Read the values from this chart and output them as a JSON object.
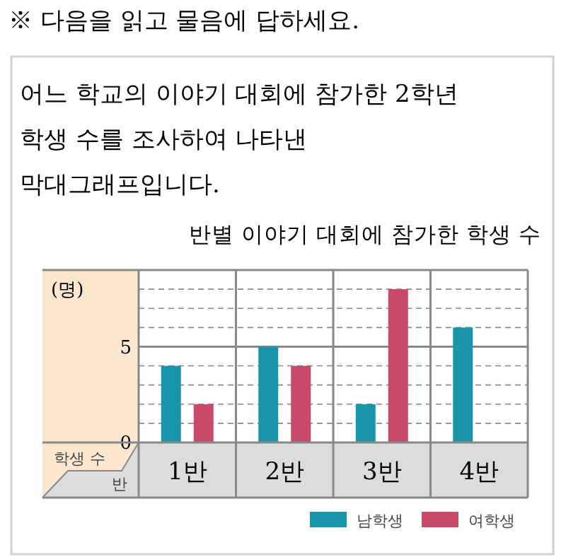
{
  "chart_data": {
    "type": "bar",
    "title": "반별 이야기 대회에 참가한 학생 수",
    "annotations": [
      "※ 다음을 읽고 물음에 답하세요.",
      "어느 학교의 이야기 대회에 참가한 2학년",
      "학생 수를 조사하여 나타낸",
      "막대그래프입니다.",
      "학생 수"
    ],
    "ylabel": "(명)",
    "xlabel": "반",
    "categories": [
      "1반",
      "2반",
      "3반",
      "4반"
    ],
    "series": [
      {
        "name": "남학생",
        "color": "#1a96ac",
        "values": [
          4,
          5,
          2,
          6
        ]
      },
      {
        "name": "여학생",
        "color": "#c9496a",
        "values": [
          2,
          4,
          8,
          null
        ]
      }
    ],
    "ylim": [
      0,
      9
    ],
    "yticks": [
      0,
      {
        "value": 1,
        "label": null
      },
      {
        "value": 2,
        "label": null
      },
      {
        "value": 3,
        "label": null
      },
      {
        "value": 4,
        "label": null
      },
      5,
      {
        "value": 6,
        "label": null
      },
      {
        "value": 7,
        "label": null
      },
      {
        "value": 8,
        "label": null
      }
    ],
    "grid": "y",
    "legend": "bottom right"
  }
}
